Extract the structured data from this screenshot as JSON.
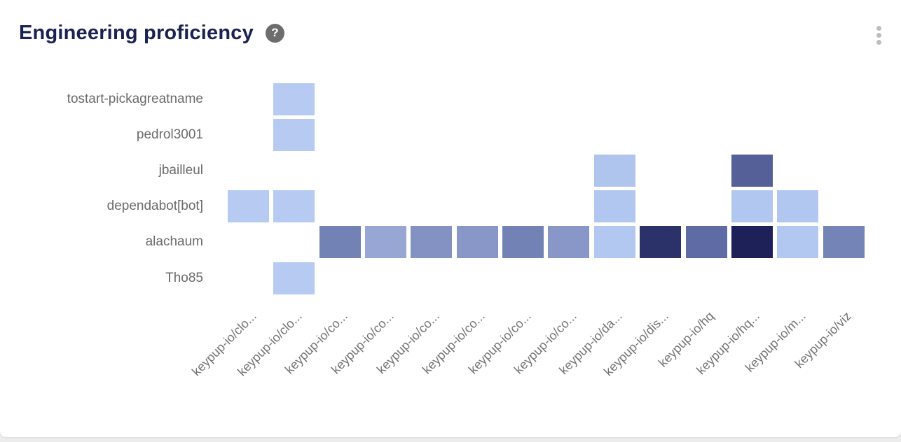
{
  "header": {
    "title": "Engineering proficiency"
  },
  "icons": {
    "help_glyph": "?",
    "menu": "kebab-vertical-menu"
  },
  "chart_data": {
    "type": "heatmap",
    "title": "Engineering proficiency",
    "legend": "none",
    "x_label_rotation": 45,
    "rows": [
      "tostart-pickagreatname",
      "pedrol3001",
      "jbailleul",
      "dependabot[bot]",
      "alachaum",
      "Tho85"
    ],
    "columns": [
      "keypup-io/clo...",
      "keypup-io/clo...",
      "keypup-io/co...",
      "keypup-io/co...",
      "keypup-io/co...",
      "keypup-io/co...",
      "keypup-io/co...",
      "keypup-io/co...",
      "keypup-io/da...",
      "keypup-io/dis...",
      "keypup-io/hq",
      "keypup-io/hq...",
      "keypup-io/m...",
      "keypup-io/viz"
    ],
    "color_scale": {
      "low": "#b6caf2",
      "high": "#1d2158"
    },
    "cells": [
      {
        "row": 0,
        "col": 1,
        "color": "#b6caf2"
      },
      {
        "row": 1,
        "col": 1,
        "color": "#b6caf2"
      },
      {
        "row": 2,
        "col": 8,
        "color": "#afc5ee"
      },
      {
        "row": 2,
        "col": 11,
        "color": "#566098"
      },
      {
        "row": 3,
        "col": 0,
        "color": "#b6caf2"
      },
      {
        "row": 3,
        "col": 1,
        "color": "#b6caf2"
      },
      {
        "row": 3,
        "col": 8,
        "color": "#b2c7ef"
      },
      {
        "row": 3,
        "col": 11,
        "color": "#b2c7ef"
      },
      {
        "row": 3,
        "col": 12,
        "color": "#b2c7ef"
      },
      {
        "row": 4,
        "col": 2,
        "color": "#7382b4"
      },
      {
        "row": 4,
        "col": 3,
        "color": "#97a6d2"
      },
      {
        "row": 4,
        "col": 4,
        "color": "#8392c3"
      },
      {
        "row": 4,
        "col": 5,
        "color": "#8997c8"
      },
      {
        "row": 4,
        "col": 6,
        "color": "#7382b4"
      },
      {
        "row": 4,
        "col": 7,
        "color": "#8997c8"
      },
      {
        "row": 4,
        "col": 8,
        "color": "#b3c8f0"
      },
      {
        "row": 4,
        "col": 9,
        "color": "#2a3269"
      },
      {
        "row": 4,
        "col": 10,
        "color": "#5e6ba4"
      },
      {
        "row": 4,
        "col": 11,
        "color": "#1d2158"
      },
      {
        "row": 4,
        "col": 12,
        "color": "#b3c8f0"
      },
      {
        "row": 4,
        "col": 13,
        "color": "#7584b6"
      },
      {
        "row": 5,
        "col": 1,
        "color": "#b6caf2"
      }
    ]
  }
}
